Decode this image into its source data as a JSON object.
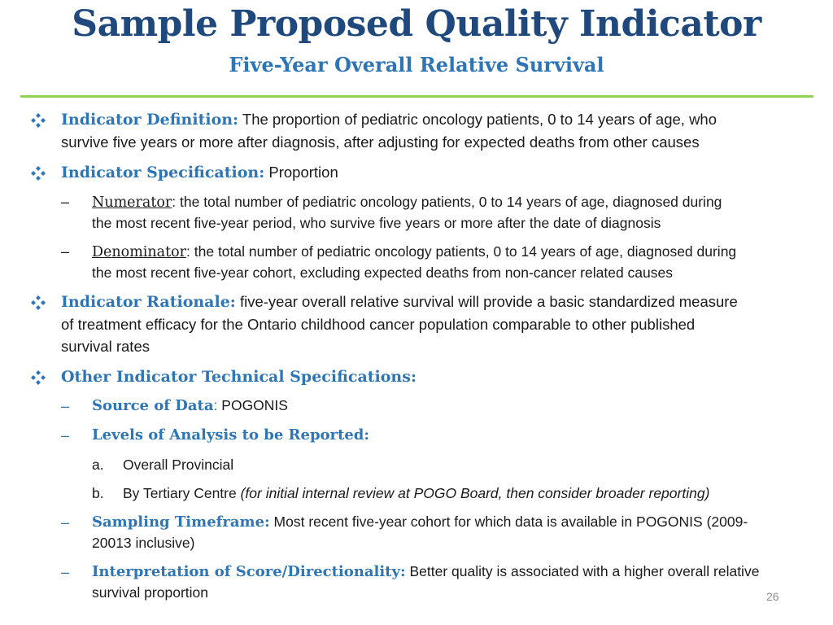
{
  "header": {
    "title": "Sample Proposed Quality Indicator",
    "subtitle": "Five-Year Overall Relative Survival"
  },
  "definition": {
    "heading": "Indicator Definition:",
    "text_line1": "The proportion of pediatric oncology patients, 0 to 14 years of age, who",
    "text_line2": "survive five years or more after diagnosis, after adjusting for expected deaths from other causes"
  },
  "specification": {
    "heading": "Indicator Specification:",
    "text": "Proportion",
    "numerator": {
      "label": "Numerator",
      "text_line1": ": the total number of pediatric oncology patients, 0 to 14 years of age, diagnosed during",
      "text_line2": "the most recent five-year period, who survive five years or more after the date of diagnosis"
    },
    "denominator": {
      "label": "Denominator",
      "text_line1": ": the total number of pediatric oncology patients, 0 to 14 years of age, diagnosed during",
      "text_line2": "the most recent five-year cohort, excluding expected deaths from non-cancer related causes"
    }
  },
  "rationale": {
    "heading": "Indicator Rationale:",
    "text_line1": "five-year overall relative survival will provide a basic standardized measure",
    "text_line2": "of treatment efficacy for the Ontario childhood cancer population comparable to other published",
    "text_line3": "survival rates"
  },
  "other": {
    "heading": "Other Indicator Technical Specifications:",
    "source": {
      "label": "Source of Data",
      "sep": ":",
      "text": "POGONIS"
    },
    "levels": {
      "label": "Levels of Analysis to be Reported:",
      "items": [
        {
          "marker": "a.",
          "text": "Overall Provincial",
          "note": ""
        },
        {
          "marker": "b.",
          "text": "By Tertiary Centre ",
          "note": "(for initial internal review at POGO Board, then consider broader reporting)"
        }
      ]
    },
    "timeframe": {
      "label": "Sampling Timeframe:",
      "text_line1": "Most recent five-year cohort for which data is available in POGONIS (2009-",
      "text_line2": "20013 inclusive)"
    },
    "interpretation": {
      "label": "Interpretation of Score/Directionality:",
      "text_line1": "Better quality is associated with a higher overall relative",
      "text_line2": "survival proportion"
    }
  },
  "bullet_icon": "diamond-quad-bullet-icon",
  "colors": {
    "title": "#1f497d",
    "accent": "#2e75b6",
    "rule": "#92d050"
  },
  "footer": {
    "page_number": "26"
  }
}
